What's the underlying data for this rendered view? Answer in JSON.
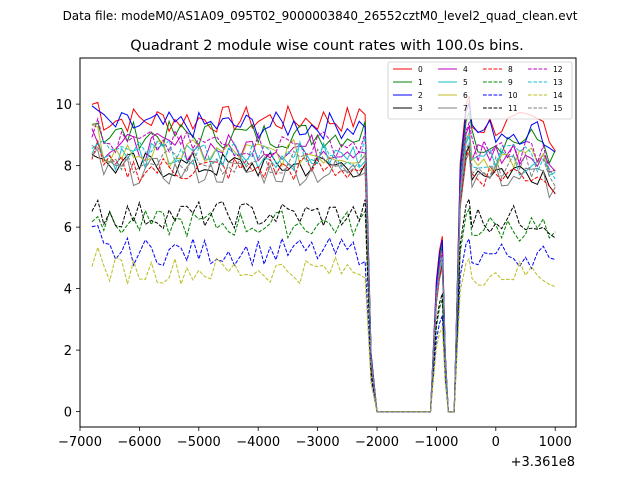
{
  "suptitle": "Data file: modeM0/AS1A09_095T02_9000003840_26552cztM0_level2_quad_clean.evt",
  "chart_data": {
    "type": "line",
    "title": "Quadrant 2 module wise count rates with 100.0s bins.",
    "xlabel": "",
    "ylabel": "",
    "x_offset_label": "+3.361e8",
    "xlim": [
      -7000,
      1350
    ],
    "ylim": [
      -0.5,
      11.5
    ],
    "x_ticks": [
      -7000,
      -6000,
      -5000,
      -4000,
      -3000,
      -2000,
      -1000,
      0,
      1000
    ],
    "x_tick_labels": [
      "−7000",
      "−6000",
      "−5000",
      "−4000",
      "−3000",
      "−2000",
      "−1000",
      "0",
      "1000"
    ],
    "y_ticks": [
      0,
      2,
      4,
      6,
      8,
      10
    ],
    "y_tick_labels": [
      "0",
      "2",
      "4",
      "6",
      "8",
      "10"
    ],
    "grid": false,
    "legend": {
      "placement": "top-right",
      "columns": 4
    },
    "series": [
      {
        "name": "0",
        "color": "#ff0000",
        "dash": "solid",
        "level": 9.5
      },
      {
        "name": "1",
        "color": "#008000",
        "dash": "solid",
        "level": 9.0
      },
      {
        "name": "2",
        "color": "#0000ff",
        "dash": "solid",
        "level": 9.3
      },
      {
        "name": "3",
        "color": "#000000",
        "dash": "solid",
        "level": 8.0
      },
      {
        "name": "4",
        "color": "#bf00bf",
        "dash": "solid",
        "level": 8.6
      },
      {
        "name": "5",
        "color": "#17becf",
        "dash": "solid",
        "level": 8.3
      },
      {
        "name": "6",
        "color": "#bcbd22",
        "dash": "solid",
        "level": 8.4
      },
      {
        "name": "7",
        "color": "#7f7f7f",
        "dash": "solid",
        "level": 7.8
      },
      {
        "name": "8",
        "color": "#ff0000",
        "dash": "dashed",
        "level": 7.9
      },
      {
        "name": "9",
        "color": "#008000",
        "dash": "dashed",
        "level": 6.1
      },
      {
        "name": "10",
        "color": "#0000ff",
        "dash": "dashed",
        "level": 5.2
      },
      {
        "name": "11",
        "color": "#000000",
        "dash": "dashed",
        "level": 6.4
      },
      {
        "name": "12",
        "color": "#bf00bf",
        "dash": "dashed",
        "level": 8.7
      },
      {
        "name": "13",
        "color": "#17becf",
        "dash": "dashed",
        "level": 8.4
      },
      {
        "name": "14",
        "color": "#bcbd22",
        "dash": "dashed",
        "level": 4.6
      },
      {
        "name": "15",
        "color": "#7f7f7f",
        "dash": "dashed",
        "level": 8.1
      }
    ]
  }
}
